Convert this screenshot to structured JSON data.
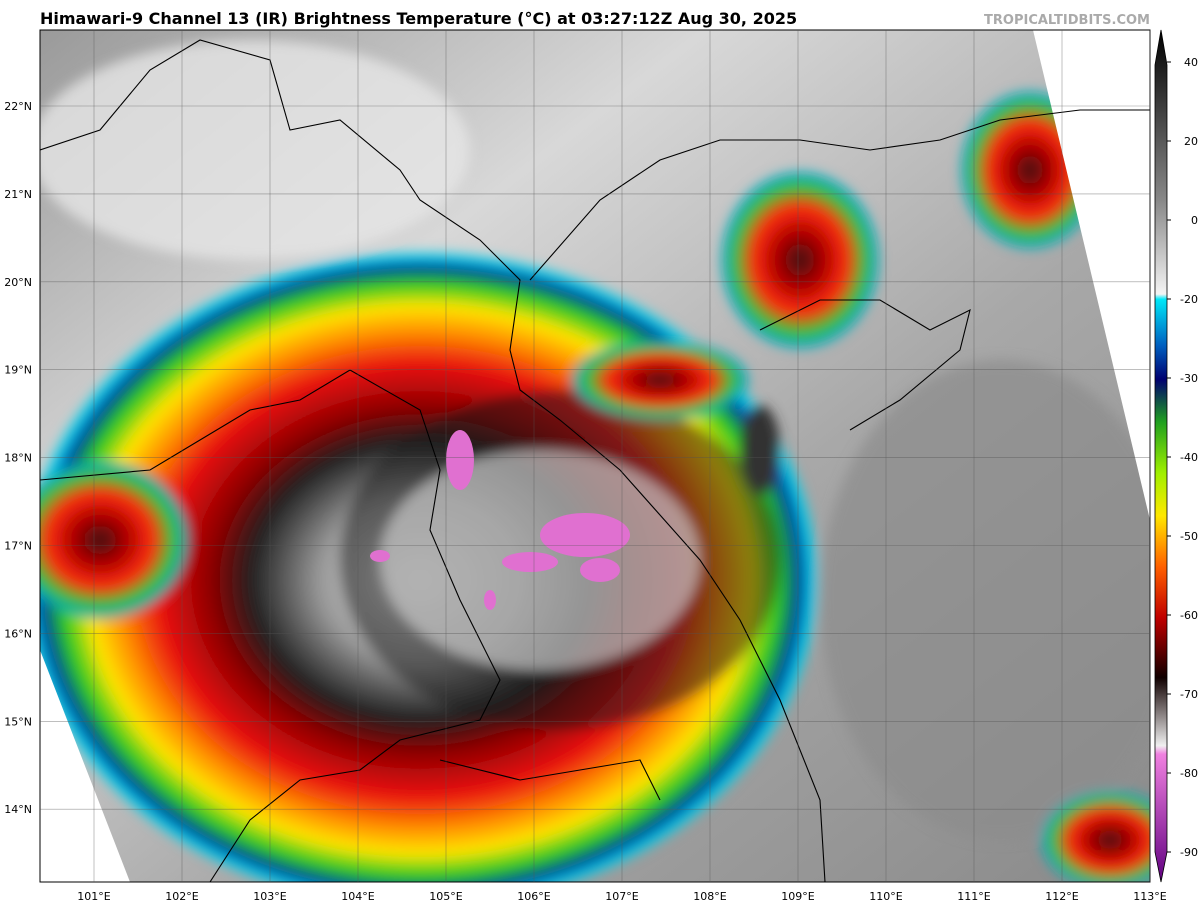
{
  "header": {
    "title": "Himawari-9 Channel 13 (IR) Brightness Temperature (°C) at 03:27:12Z Aug 30, 2025",
    "credit": "TROPICALTIDBITS.COM"
  },
  "map": {
    "lat_labels": [
      "22°N",
      "21°N",
      "20°N",
      "19°N",
      "18°N",
      "17°N",
      "16°N",
      "15°N",
      "14°N"
    ],
    "lon_labels": [
      "101°E",
      "102°E",
      "103°E",
      "104°E",
      "105°E",
      "106°E",
      "107°E",
      "108°E",
      "109°E",
      "110°E",
      "111°E",
      "112°E",
      "113°E"
    ]
  },
  "colorbar": {
    "ticks": [
      40,
      20,
      0,
      -20,
      -30,
      -40,
      -50,
      -60,
      -70,
      -80,
      -90
    ]
  }
}
